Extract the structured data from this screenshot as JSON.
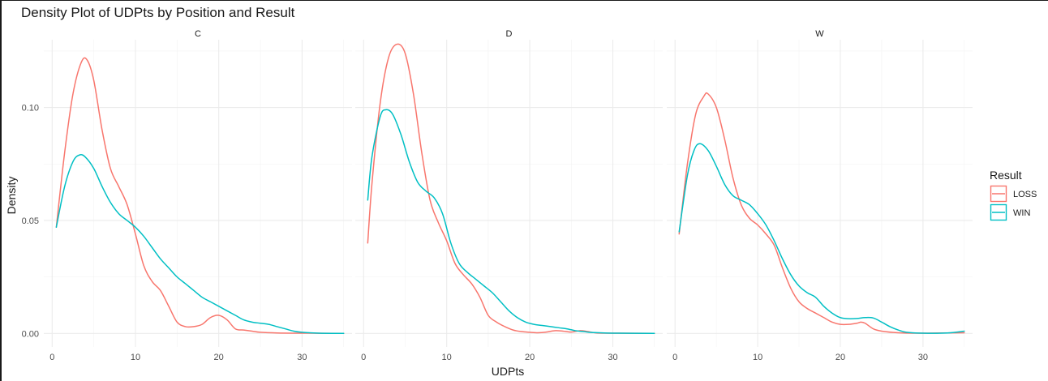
{
  "chart_data": {
    "type": "line",
    "title": "Density Plot of UDPts by Position and Result",
    "xlabel": "UDPts",
    "ylabel": "Density",
    "xlim": [
      -1,
      36
    ],
    "ylim": [
      -0.006,
      0.13
    ],
    "x_ticks": [
      0,
      10,
      20,
      30
    ],
    "x_tick_labels": [
      "0",
      "10",
      "20",
      "30"
    ],
    "y_ticks": [
      0.0,
      0.05,
      0.1
    ],
    "y_tick_labels": [
      "0.00",
      "0.05",
      "0.10"
    ],
    "grid": true,
    "legend": {
      "title": "Result",
      "position": "right",
      "entries": [
        {
          "label": "LOSS",
          "color": "#F8766D"
        },
        {
          "label": "WIN",
          "color": "#00BFC4"
        }
      ]
    },
    "panels": [
      {
        "label": "C",
        "series": [
          {
            "name": "LOSS",
            "color": "#F8766D",
            "points": [
              [
                0.5,
                0.047
              ],
              [
                1.5,
                0.08
              ],
              [
                2.5,
                0.106
              ],
              [
                3.5,
                0.12
              ],
              [
                4.2,
                0.121
              ],
              [
                5,
                0.112
              ],
              [
                6,
                0.09
              ],
              [
                7,
                0.073
              ],
              [
                8,
                0.065
              ],
              [
                9,
                0.057
              ],
              [
                10,
                0.044
              ],
              [
                11,
                0.03
              ],
              [
                12,
                0.023
              ],
              [
                13,
                0.019
              ],
              [
                14,
                0.012
              ],
              [
                15,
                0.005
              ],
              [
                16,
                0.003
              ],
              [
                17,
                0.003
              ],
              [
                18,
                0.004
              ],
              [
                19,
                0.007
              ],
              [
                20,
                0.008
              ],
              [
                21,
                0.006
              ],
              [
                22,
                0.002
              ],
              [
                23,
                0.0015
              ],
              [
                24,
                0.001
              ],
              [
                25,
                0.0005
              ],
              [
                27,
                0.0002
              ],
              [
                30,
                0.0001
              ],
              [
                35,
                0
              ]
            ]
          },
          {
            "name": "WIN",
            "color": "#00BFC4",
            "points": [
              [
                0.5,
                0.047
              ],
              [
                1.5,
                0.065
              ],
              [
                2.5,
                0.076
              ],
              [
                3.3,
                0.079
              ],
              [
                4,
                0.078
              ],
              [
                5,
                0.073
              ],
              [
                6,
                0.065
              ],
              [
                7,
                0.058
              ],
              [
                8,
                0.053
              ],
              [
                9,
                0.05
              ],
              [
                10,
                0.047
              ],
              [
                11,
                0.043
              ],
              [
                12,
                0.038
              ],
              [
                13,
                0.033
              ],
              [
                14,
                0.029
              ],
              [
                15,
                0.025
              ],
              [
                16,
                0.022
              ],
              [
                17,
                0.019
              ],
              [
                18,
                0.016
              ],
              [
                19,
                0.014
              ],
              [
                20,
                0.012
              ],
              [
                21,
                0.01
              ],
              [
                22,
                0.008
              ],
              [
                23,
                0.006
              ],
              [
                24,
                0.005
              ],
              [
                25,
                0.0045
              ],
              [
                26,
                0.004
              ],
              [
                27,
                0.003
              ],
              [
                28,
                0.002
              ],
              [
                29,
                0.001
              ],
              [
                30,
                0.0005
              ],
              [
                32,
                0.0001
              ],
              [
                35,
                0
              ]
            ]
          }
        ]
      },
      {
        "label": "D",
        "series": [
          {
            "name": "LOSS",
            "color": "#F8766D",
            "points": [
              [
                0.5,
                0.04
              ],
              [
                1,
                0.066
              ],
              [
                2,
                0.102
              ],
              [
                3,
                0.122
              ],
              [
                4,
                0.128
              ],
              [
                5,
                0.124
              ],
              [
                6,
                0.106
              ],
              [
                7,
                0.08
              ],
              [
                8,
                0.059
              ],
              [
                9,
                0.049
              ],
              [
                10,
                0.041
              ],
              [
                11,
                0.031
              ],
              [
                12,
                0.026
              ],
              [
                13,
                0.022
              ],
              [
                14,
                0.016
              ],
              [
                15,
                0.008
              ],
              [
                16,
                0.005
              ],
              [
                17,
                0.003
              ],
              [
                18,
                0.0015
              ],
              [
                19,
                0.0008
              ],
              [
                20,
                0.0005
              ],
              [
                21,
                0.0003
              ],
              [
                22,
                0.0006
              ],
              [
                23,
                0.0012
              ],
              [
                24,
                0.001
              ],
              [
                25,
                0.0006
              ],
              [
                26,
                0.0012
              ],
              [
                27,
                0.0008
              ],
              [
                28,
                0.0002
              ],
              [
                30,
                0.0001
              ],
              [
                35,
                0
              ]
            ]
          },
          {
            "name": "WIN",
            "color": "#00BFC4",
            "points": [
              [
                0.5,
                0.059
              ],
              [
                1,
                0.078
              ],
              [
                2,
                0.096
              ],
              [
                2.7,
                0.099
              ],
              [
                3.5,
                0.097
              ],
              [
                4.5,
                0.088
              ],
              [
                5.5,
                0.076
              ],
              [
                6.5,
                0.067
              ],
              [
                7.5,
                0.063
              ],
              [
                8.5,
                0.06
              ],
              [
                9.5,
                0.053
              ],
              [
                10.5,
                0.04
              ],
              [
                11.5,
                0.031
              ],
              [
                12.5,
                0.027
              ],
              [
                13.5,
                0.024
              ],
              [
                14.5,
                0.021
              ],
              [
                15.5,
                0.018
              ],
              [
                16.5,
                0.014
              ],
              [
                17.5,
                0.01
              ],
              [
                18.5,
                0.007
              ],
              [
                19.5,
                0.005
              ],
              [
                20.5,
                0.004
              ],
              [
                21.5,
                0.0035
              ],
              [
                22.5,
                0.003
              ],
              [
                23.5,
                0.0025
              ],
              [
                24.5,
                0.002
              ],
              [
                25.5,
                0.0012
              ],
              [
                26.5,
                0.0008
              ],
              [
                27.5,
                0.0004
              ],
              [
                30,
                0.0001
              ],
              [
                35,
                0
              ]
            ]
          }
        ]
      },
      {
        "label": "W",
        "series": [
          {
            "name": "LOSS",
            "color": "#F8766D",
            "points": [
              [
                0.5,
                0.044
              ],
              [
                1.5,
                0.075
              ],
              [
                2.5,
                0.097
              ],
              [
                3.5,
                0.105
              ],
              [
                4,
                0.106
              ],
              [
                5,
                0.1
              ],
              [
                6,
                0.086
              ],
              [
                7,
                0.069
              ],
              [
                8,
                0.057
              ],
              [
                9,
                0.051
              ],
              [
                10,
                0.048
              ],
              [
                11,
                0.044
              ],
              [
                12,
                0.039
              ],
              [
                13,
                0.029
              ],
              [
                14,
                0.02
              ],
              [
                15,
                0.014
              ],
              [
                16,
                0.011
              ],
              [
                17,
                0.009
              ],
              [
                18,
                0.007
              ],
              [
                19,
                0.005
              ],
              [
                20,
                0.004
              ],
              [
                21,
                0.004
              ],
              [
                22,
                0.0045
              ],
              [
                22.5,
                0.005
              ],
              [
                23,
                0.0045
              ],
              [
                24,
                0.002
              ],
              [
                25,
                0.001
              ],
              [
                27,
                0.0003
              ],
              [
                30,
                0.0001
              ],
              [
                35,
                0.0003
              ]
            ]
          },
          {
            "name": "WIN",
            "color": "#00BFC4",
            "points": [
              [
                0.5,
                0.045
              ],
              [
                1.5,
                0.07
              ],
              [
                2.3,
                0.081
              ],
              [
                3,
                0.084
              ],
              [
                4,
                0.081
              ],
              [
                5,
                0.074
              ],
              [
                6,
                0.066
              ],
              [
                7,
                0.061
              ],
              [
                8,
                0.059
              ],
              [
                9,
                0.057
              ],
              [
                10,
                0.053
              ],
              [
                11,
                0.048
              ],
              [
                12,
                0.041
              ],
              [
                13,
                0.033
              ],
              [
                14,
                0.026
              ],
              [
                15,
                0.021
              ],
              [
                16,
                0.018
              ],
              [
                17,
                0.016
              ],
              [
                18,
                0.012
              ],
              [
                19,
                0.009
              ],
              [
                20,
                0.007
              ],
              [
                21,
                0.0065
              ],
              [
                22,
                0.0066
              ],
              [
                23,
                0.007
              ],
              [
                24,
                0.0068
              ],
              [
                25,
                0.005
              ],
              [
                26,
                0.003
              ],
              [
                27,
                0.0015
              ],
              [
                28,
                0.0005
              ],
              [
                30,
                0.0001
              ],
              [
                33,
                0.0002
              ],
              [
                35,
                0.001
              ]
            ]
          }
        ]
      }
    ]
  }
}
